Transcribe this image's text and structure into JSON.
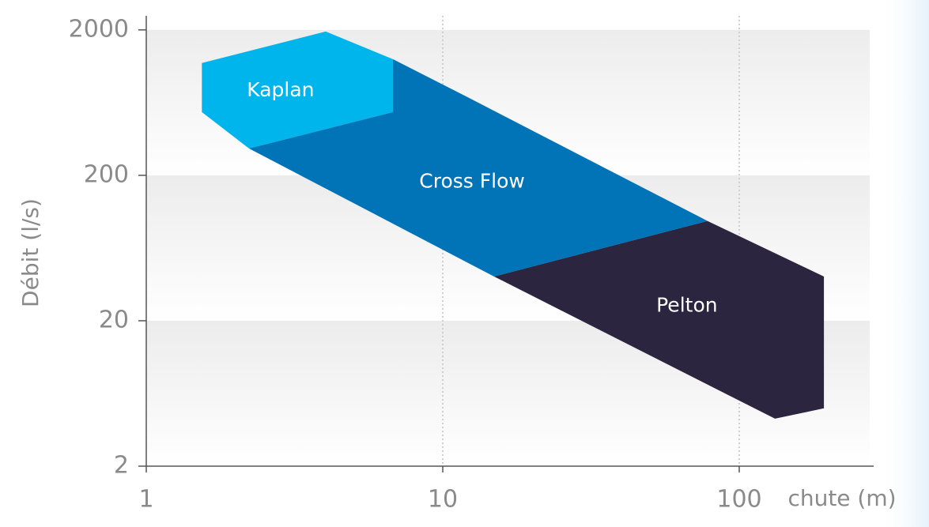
{
  "chart_data": {
    "type": "region",
    "x_label": "chute (m)",
    "y_label": "Débit (l/s)",
    "x_scale": "log",
    "y_scale": "log",
    "grid": true,
    "xlim": [
      1,
      284
    ],
    "ylim": [
      2,
      2500
    ],
    "xticks": [
      1,
      10,
      100
    ],
    "yticks": [
      2,
      20,
      200,
      2000
    ],
    "series": [
      {
        "name": "Kaplan",
        "color": "#00b5ec",
        "x": [
          1.54,
          4.03,
          6.79,
          6.79,
          2.22,
          1.54
        ],
        "values": [
          1183,
          1950,
          1258,
          544,
          306,
          544
        ]
      },
      {
        "name": "Cross Flow",
        "color": "#0174b8",
        "x": [
          2.22,
          6.79,
          6.79,
          11.7,
          78.2,
          14.9
        ],
        "values": [
          306,
          544,
          1258,
          716,
          97,
          40.3
        ]
      },
      {
        "name": "Pelton",
        "color": "#2b2540",
        "x": [
          14.9,
          78.2,
          193,
          193,
          132
        ],
        "values": [
          40.3,
          97,
          40.3,
          5.0,
          4.24
        ]
      }
    ]
  }
}
